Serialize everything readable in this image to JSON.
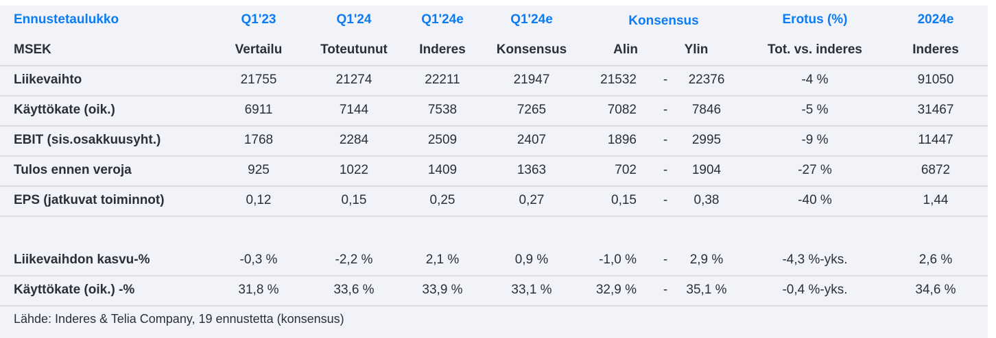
{
  "header": {
    "title": "Ennustetaulukko",
    "unit": "MSEK",
    "columns": [
      {
        "period": "Q1'23",
        "sub": "Vertailu"
      },
      {
        "period": "Q1'24",
        "sub": "Toteutunut"
      },
      {
        "period": "Q1'24e",
        "sub": "Inderes"
      },
      {
        "period": "Q1'24e",
        "sub": "Konsensus"
      },
      {
        "period": "Konsensus",
        "sub_low": "Alin",
        "sub_high": "Ylin"
      },
      {
        "period": "Erotus (%)",
        "sub": "Tot. vs. inderes"
      },
      {
        "period": "2024e",
        "sub": "Inderes"
      }
    ]
  },
  "rows": [
    {
      "label": "Liikevaihto",
      "q123": "21755",
      "q124": "21274",
      "inderes": "22211",
      "konsensus": "21947",
      "alin": "21532",
      "dash": "-",
      "ylin": "22376",
      "erotus": "-4 %",
      "y2024": "91050"
    },
    {
      "label": "Käyttökate (oik.)",
      "q123": "6911",
      "q124": "7144",
      "inderes": "7538",
      "konsensus": "7265",
      "alin": "7082",
      "dash": "-",
      "ylin": "7846",
      "erotus": "-5 %",
      "y2024": "31467"
    },
    {
      "label": "EBIT (sis.osakkuusyht.)",
      "q123": "1768",
      "q124": "2284",
      "inderes": "2509",
      "konsensus": "2407",
      "alin": "1896",
      "dash": "-",
      "ylin": "2995",
      "erotus": "-9 %",
      "y2024": "11447"
    },
    {
      "label": "Tulos ennen veroja",
      "q123": "925",
      "q124": "1022",
      "inderes": "1409",
      "konsensus": "1363",
      "alin": "702",
      "dash": "-",
      "ylin": "1904",
      "erotus": "-27 %",
      "y2024": "6872"
    },
    {
      "label": "EPS (jatkuvat toiminnot)",
      "q123": "0,12",
      "q124": "0,15",
      "inderes": "0,25",
      "konsensus": "0,27",
      "alin": "0,15",
      "dash": "-",
      "ylin": "0,38",
      "erotus": "-40 %",
      "y2024": "1,44"
    },
    {
      "label": "Liikevaihdon kasvu-%",
      "q123": "-0,3 %",
      "q124": "-2,2 %",
      "inderes": "2,1 %",
      "konsensus": "0,9 %",
      "alin": "-1,0 %",
      "dash": "-",
      "ylin": "2,9 %",
      "erotus": "-4,3 %-yks.",
      "y2024": "2,6 %"
    },
    {
      "label": "Käyttökate (oik.) -%",
      "q123": "31,8 %",
      "q124": "33,6 %",
      "inderes": "33,9 %",
      "konsensus": "33,1 %",
      "alin": "32,9 %",
      "dash": "-",
      "ylin": "35,1 %",
      "erotus": "-0,4 %-yks.",
      "y2024": "34,6 %"
    }
  ],
  "source": "Lähde: Inderes & Telia Company, 19 ennustetta  (konsensus)",
  "colors": {
    "accent": "#0a7cf5",
    "text": "#2b2f3a",
    "background": "#f2f3f8"
  }
}
